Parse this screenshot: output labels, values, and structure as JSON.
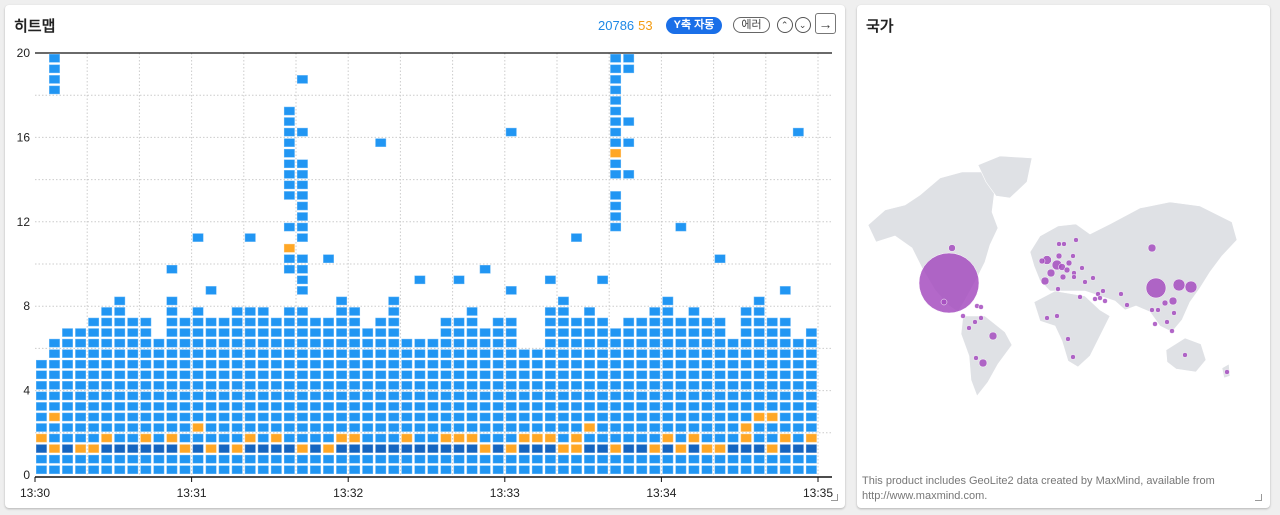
{
  "left_panel": {
    "title": "히트맵",
    "count_normal": "20786",
    "count_error": "53",
    "y_auto_label": "Y축 자동",
    "error_label": "에러",
    "up_icon": "chevron-up-circle-icon",
    "down_icon": "chevron-down-circle-icon",
    "open_icon": "arrow-right-icon"
  },
  "right_panel": {
    "title": "국가",
    "attribution_line1": "This product includes GeoLite2 data created by MaxMind, available from",
    "attribution_line2": "http://www.maxmind.com."
  },
  "colors": {
    "normal": "#2196f3",
    "dense": "#1565c0",
    "error": "#ffa726",
    "bubble": "#a64dbf",
    "land": "#dfe1e5"
  },
  "chart_data": {
    "type": "heatmap",
    "x_ticks": [
      "13:30",
      "13:31",
      "13:32",
      "13:33",
      "13:34",
      "13:35"
    ],
    "y_ticks": [
      "0",
      "4",
      "8",
      "12",
      "16",
      "20"
    ],
    "ylim": [
      0,
      20
    ],
    "x_range": [
      "13:30",
      "13:35"
    ],
    "bucket_seconds": 5,
    "cell_height": 0.5,
    "grid": true,
    "dense_row_y": 1.25,
    "column_tops": [
      5.25,
      6.25,
      6.75,
      6.75,
      7.25,
      7.75,
      8.25,
      7.25,
      7.25,
      6.25,
      8.25,
      7.25,
      7.75,
      7.25,
      7.25,
      7.75,
      7.75,
      7.75,
      7.25,
      7.75,
      7.75,
      7.25,
      7.25,
      8.25,
      7.75,
      6.75,
      7.25,
      8.25,
      6.25,
      6.25,
      6.25,
      7.25,
      7.25,
      7.75,
      6.75,
      7.25,
      7.25,
      5.75,
      5.75,
      7.75,
      8.25,
      7.25,
      7.75,
      7.25,
      6.75,
      7.25,
      7.25,
      7.75,
      8.25,
      7.25,
      7.75,
      7.25,
      7.25,
      6.25,
      7.75,
      8.25,
      7.25,
      7.25,
      6.25,
      6.75
    ],
    "extras": {
      "1": [
        19.75,
        19.25,
        18.75,
        18.25
      ],
      "10": [
        9.75
      ],
      "12": [
        11.25
      ],
      "13": [
        8.75
      ],
      "16": [
        11.25
      ],
      "19": [
        17.25,
        16.75,
        16.25,
        15.75,
        15.25,
        14.75,
        14.25,
        13.75,
        13.25,
        11.75,
        10.75,
        10.25,
        9.75
      ],
      "20": [
        18.75,
        16.25,
        14.75,
        14.25,
        13.75,
        13.25,
        12.75,
        12.25,
        11.75,
        11.25,
        10.25,
        9.75,
        9.25,
        8.75
      ],
      "22": [
        10.25
      ],
      "26": [
        15.75
      ],
      "29": [
        9.25
      ],
      "32": [
        9.25
      ],
      "34": [
        9.75
      ],
      "36": [
        16.25,
        8.75
      ],
      "39": [
        9.25
      ],
      "41": [
        11.25
      ],
      "43": [
        9.25
      ],
      "44": [
        19.75,
        19.25,
        18.75,
        18.25,
        17.75,
        17.25,
        16.75,
        16.25,
        15.75,
        15.25,
        14.75,
        14.25,
        13.25,
        12.75,
        12.25,
        11.75
      ],
      "45": [
        19.75,
        19.25,
        16.75,
        15.75,
        14.25
      ],
      "49": [
        11.75
      ],
      "52": [
        10.25
      ],
      "57": [
        8.75
      ],
      "58": [
        16.25
      ]
    },
    "errors": {
      "0": [
        1.75
      ],
      "1": [
        1.25,
        2.75
      ],
      "3": [
        1.25
      ],
      "4": [
        1.25
      ],
      "5": [
        1.75
      ],
      "8": [
        1.75
      ],
      "10": [
        1.75
      ],
      "11": [
        1.25
      ],
      "12": [
        2.25
      ],
      "13": [
        1.25
      ],
      "15": [
        1.25
      ],
      "16": [
        1.75
      ],
      "18": [
        1.75
      ],
      "19": [
        10.75
      ],
      "20": [
        1.25
      ],
      "22": [
        1.25
      ],
      "23": [
        1.75
      ],
      "24": [
        1.75
      ],
      "28": [
        1.75
      ],
      "31": [
        1.75
      ],
      "32": [
        1.75
      ],
      "33": [
        1.75
      ],
      "34": [
        1.25
      ],
      "36": [
        1.25
      ],
      "37": [
        1.75
      ],
      "38": [
        1.75
      ],
      "39": [
        1.75
      ],
      "40": [
        1.25
      ],
      "41": [
        1.25,
        1.75
      ],
      "42": [
        2.25
      ],
      "44": [
        1.25,
        15.25
      ],
      "47": [
        1.25
      ],
      "48": [
        1.75
      ],
      "49": [
        1.25
      ],
      "50": [
        1.75
      ],
      "51": [
        1.25
      ],
      "52": [
        1.25
      ],
      "54": [
        1.75,
        2.25
      ],
      "55": [
        2.75
      ],
      "56": [
        1.25,
        2.75
      ],
      "57": [
        1.75
      ],
      "59": [
        1.75
      ]
    }
  }
}
